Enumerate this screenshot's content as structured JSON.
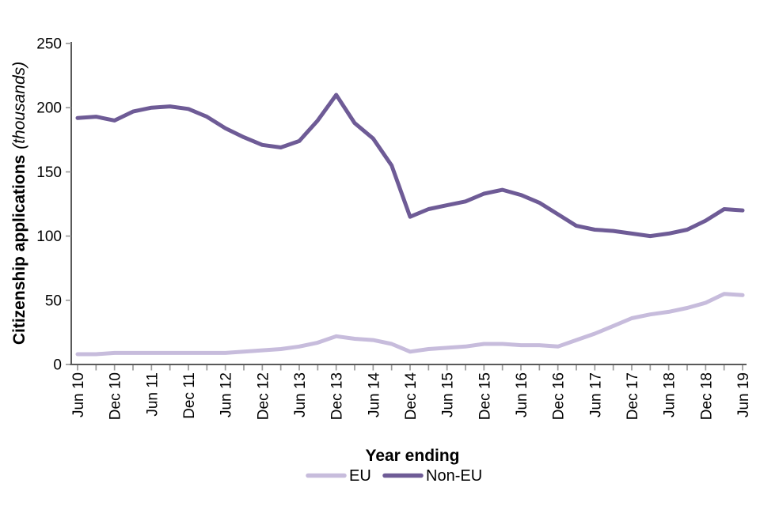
{
  "chart_data": {
    "type": "line",
    "title": "",
    "y_axis": {
      "title_main": "Citizenship applications",
      "title_unit": "(thousands)",
      "ticks": [
        0,
        50,
        100,
        150,
        200,
        250
      ],
      "range": [
        0,
        250
      ]
    },
    "x_axis": {
      "title": "Year ending",
      "tick_labels": [
        "Jun 10",
        "Dec 10",
        "Jun 11",
        "Dec 11",
        "Jun 12",
        "Dec 12",
        "Jun 13",
        "Dec 13",
        "Jun 14",
        "Dec 14",
        "Jun 15",
        "Dec 15",
        "Jun 16",
        "Dec 16",
        "Jun 17",
        "Dec 17",
        "Jun 18",
        "Dec 18",
        "Jun 19"
      ],
      "points_per_label": 2
    },
    "grid": "none",
    "legend_position": "bottom-center",
    "series": [
      {
        "name": "EU",
        "color": "#c7bcdc",
        "values": [
          8,
          8,
          9,
          9,
          9,
          9,
          9,
          9,
          9,
          10,
          11,
          12,
          14,
          17,
          22,
          20,
          19,
          16,
          10,
          12,
          13,
          14,
          16,
          16,
          15,
          15,
          14,
          19,
          24,
          30,
          36,
          39,
          41,
          44,
          48,
          55,
          54
        ]
      },
      {
        "name": "Non-EU",
        "color": "#6e5b96",
        "values": [
          192,
          193,
          190,
          197,
          200,
          201,
          199,
          193,
          184,
          177,
          171,
          169,
          174,
          190,
          210,
          188,
          176,
          155,
          115,
          121,
          124,
          127,
          133,
          136,
          132,
          126,
          117,
          108,
          105,
          104,
          102,
          100,
          102,
          105,
          112,
          121,
          120
        ]
      }
    ]
  },
  "styles": {
    "background": "#ffffff",
    "axis_line_color": "#595959",
    "tick_mark_color": "#9b9b9b",
    "text_color": "#000000"
  }
}
